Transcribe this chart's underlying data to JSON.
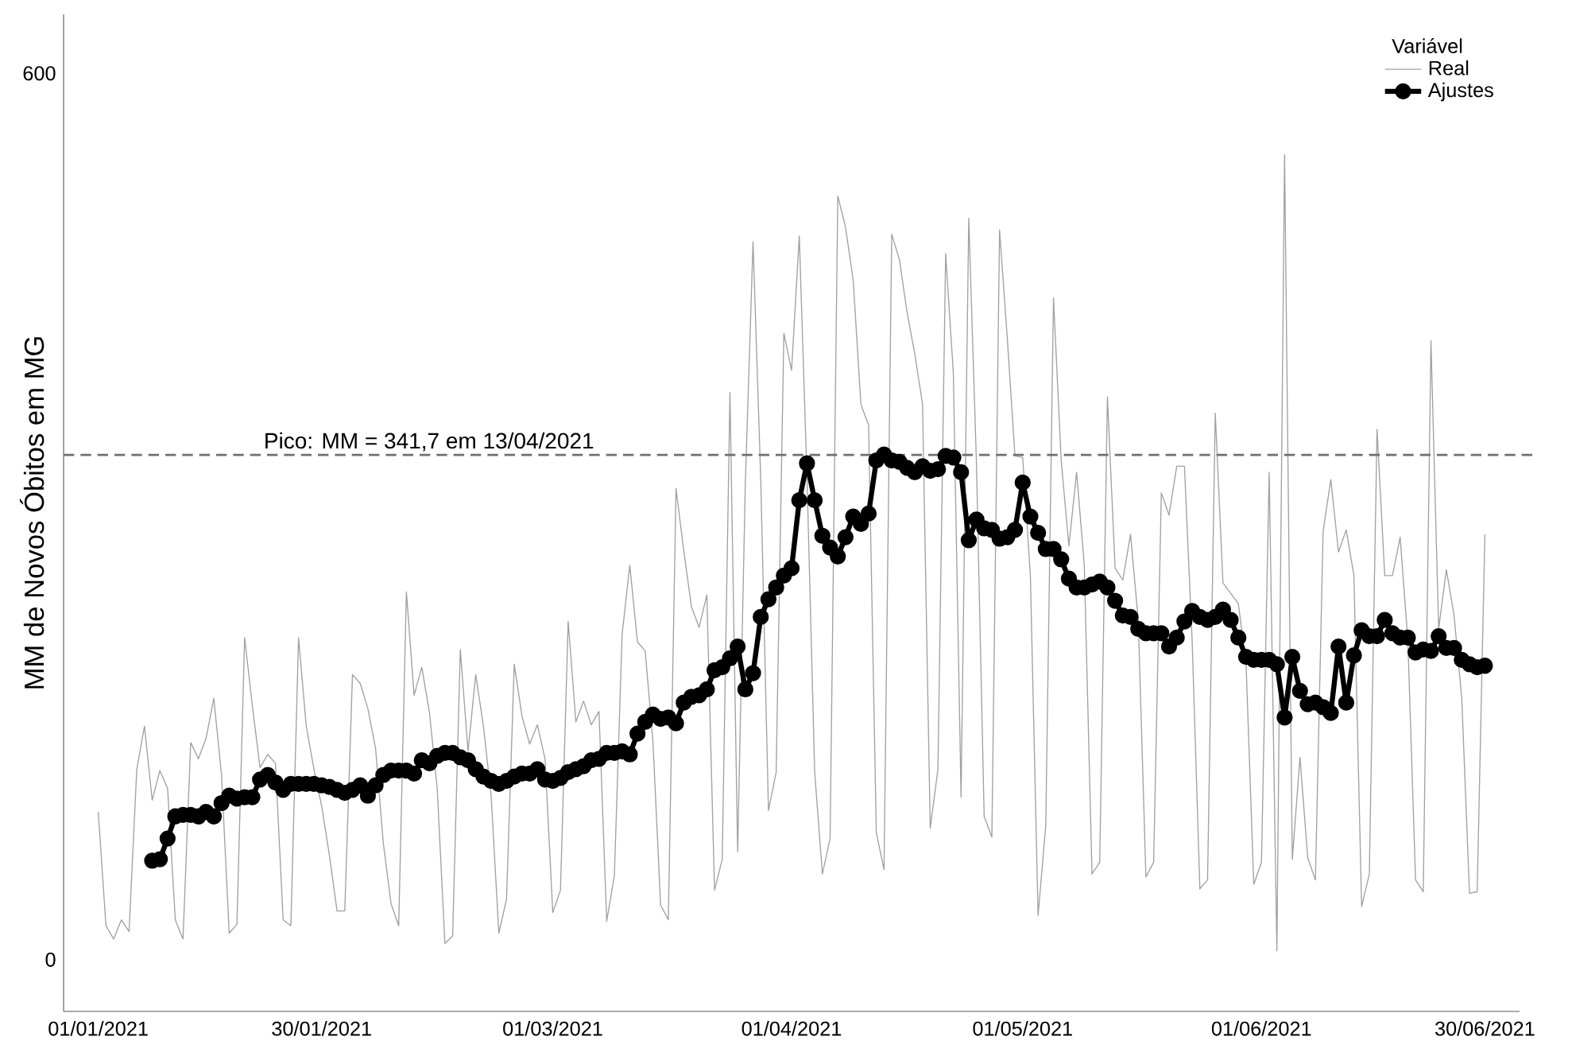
{
  "chart_data": {
    "type": "line",
    "ylabel": "MM de Novos Óbitos em MG",
    "legend_title": "Variável",
    "legend": "top right",
    "grid": false,
    "x": [
      "2021-01-01",
      "2021-01-02",
      "2021-01-03",
      "2021-01-04",
      "2021-01-05",
      "2021-01-06",
      "2021-01-07",
      "2021-01-08",
      "2021-01-09",
      "2021-01-10",
      "2021-01-11",
      "2021-01-12",
      "2021-01-13",
      "2021-01-14",
      "2021-01-15",
      "2021-01-16",
      "2021-01-17",
      "2021-01-18",
      "2021-01-19",
      "2021-01-20",
      "2021-01-21",
      "2021-01-22",
      "2021-01-23",
      "2021-01-24",
      "2021-01-25",
      "2021-01-26",
      "2021-01-27",
      "2021-01-28",
      "2021-01-29",
      "2021-01-30",
      "2021-01-31",
      "2021-02-01",
      "2021-02-02",
      "2021-02-03",
      "2021-02-04",
      "2021-02-05",
      "2021-02-06",
      "2021-02-07",
      "2021-02-08",
      "2021-02-09",
      "2021-02-10",
      "2021-02-11",
      "2021-02-12",
      "2021-02-13",
      "2021-02-14",
      "2021-02-15",
      "2021-02-16",
      "2021-02-17",
      "2021-02-18",
      "2021-02-19",
      "2021-02-20",
      "2021-02-21",
      "2021-02-22",
      "2021-02-23",
      "2021-02-24",
      "2021-02-25",
      "2021-02-26",
      "2021-02-27",
      "2021-02-28",
      "2021-03-01",
      "2021-03-02",
      "2021-03-03",
      "2021-03-04",
      "2021-03-05",
      "2021-03-06",
      "2021-03-07",
      "2021-03-08",
      "2021-03-09",
      "2021-03-10",
      "2021-03-11",
      "2021-03-12",
      "2021-03-13",
      "2021-03-14",
      "2021-03-15",
      "2021-03-16",
      "2021-03-17",
      "2021-03-18",
      "2021-03-19",
      "2021-03-20",
      "2021-03-21",
      "2021-03-22",
      "2021-03-23",
      "2021-03-24",
      "2021-03-25",
      "2021-03-26",
      "2021-03-27",
      "2021-03-28",
      "2021-03-29",
      "2021-03-30",
      "2021-03-31",
      "2021-04-01",
      "2021-04-02",
      "2021-04-03",
      "2021-04-04",
      "2021-04-05",
      "2021-04-06",
      "2021-04-07",
      "2021-04-08",
      "2021-04-09",
      "2021-04-10",
      "2021-04-11",
      "2021-04-12",
      "2021-04-13",
      "2021-04-14",
      "2021-04-15",
      "2021-04-16",
      "2021-04-17",
      "2021-04-18",
      "2021-04-19",
      "2021-04-20",
      "2021-04-21",
      "2021-04-22",
      "2021-04-23",
      "2021-04-24",
      "2021-04-25",
      "2021-04-26",
      "2021-04-27",
      "2021-04-28",
      "2021-04-29",
      "2021-04-30",
      "2021-05-01",
      "2021-05-02",
      "2021-05-03",
      "2021-05-04",
      "2021-05-05",
      "2021-05-06",
      "2021-05-07",
      "2021-05-08",
      "2021-05-09",
      "2021-05-10",
      "2021-05-11",
      "2021-05-12",
      "2021-05-13",
      "2021-05-14",
      "2021-05-15",
      "2021-05-16",
      "2021-05-17",
      "2021-05-18",
      "2021-05-19",
      "2021-05-20",
      "2021-05-21",
      "2021-05-22",
      "2021-05-23",
      "2021-05-24",
      "2021-05-25",
      "2021-05-26",
      "2021-05-27",
      "2021-05-28",
      "2021-05-29",
      "2021-05-30",
      "2021-05-31",
      "2021-06-01",
      "2021-06-02",
      "2021-06-03",
      "2021-06-04",
      "2021-06-05",
      "2021-06-06",
      "2021-06-07",
      "2021-06-08",
      "2021-06-09",
      "2021-06-10",
      "2021-06-11",
      "2021-06-12",
      "2021-06-13",
      "2021-06-14",
      "2021-06-15",
      "2021-06-16",
      "2021-06-17",
      "2021-06-18",
      "2021-06-19",
      "2021-06-20",
      "2021-06-21",
      "2021-06-22",
      "2021-06-23",
      "2021-06-24",
      "2021-06-25",
      "2021-06-26",
      "2021-06-27",
      "2021-06-28",
      "2021-06-29",
      "2021-06-30"
    ],
    "xlim": [
      "2020-12-27T12:00",
      "2021-07-04T12:00"
    ],
    "xticks": [
      {
        "value": "2021-01-01",
        "label": "01/01/2021"
      },
      {
        "value": "2021-01-30",
        "label": "30/01/2021"
      },
      {
        "value": "2021-03-01",
        "label": "01/03/2021"
      },
      {
        "value": "2021-04-01",
        "label": "01/04/2021"
      },
      {
        "value": "2021-05-01",
        "label": "01/05/2021"
      },
      {
        "value": "2021-06-01",
        "label": "01/06/2021"
      },
      {
        "value": "2021-06-30",
        "label": "30/06/2021"
      }
    ],
    "ylim": [
      -35,
      640
    ],
    "yticks": [
      0,
      600
    ],
    "ref_lines": [
      {
        "axis": "y",
        "value": 341.7,
        "label": "Pico: MM = 341,7 em 13/04/2021",
        "color": "#707070",
        "line_style": "dashed"
      }
    ],
    "series": [
      {
        "name": "Real",
        "color": "#a0a0a0",
        "marker": "none",
        "values": [
          100,
          23,
          14,
          27,
          19,
          129,
          158,
          108,
          128,
          116,
          27,
          14,
          147,
          136,
          150,
          177,
          125,
          18,
          24,
          218,
          172,
          130,
          139,
          133,
          27,
          23,
          218,
          158,
          129,
          104,
          71,
          33,
          33,
          193,
          187,
          170,
          143,
          79,
          38,
          23,
          249,
          179,
          198,
          167,
          116,
          11,
          16,
          210,
          141,
          193,
          158,
          111,
          18,
          41,
          200,
          165,
          146,
          159,
          136,
          32,
          47,
          229,
          161,
          175,
          159,
          168,
          26,
          57,
          220,
          267,
          215,
          209,
          148,
          37,
          27,
          319,
          277,
          239,
          225,
          247,
          47,
          68,
          384,
          73,
          323,
          486,
          325,
          101,
          127,
          424,
          399,
          490,
          327,
          127,
          58,
          82,
          517,
          496,
          460,
          376,
          362,
          86,
          61,
          491,
          474,
          438,
          410,
          376,
          89,
          129,
          478,
          397,
          110,
          502,
          336,
          97,
          83,
          494,
          421,
          341,
          340,
          260,
          30,
          91,
          448,
          338,
          280,
          330,
          267,
          58,
          66,
          381,
          265,
          257,
          288,
          230,
          56,
          66,
          316,
          301,
          334,
          334,
          216,
          48,
          54,
          370,
          255,
          248,
          241,
          200,
          51,
          66,
          330,
          6,
          545,
          68,
          137,
          69,
          54,
          290,
          325,
          276,
          291,
          260,
          36,
          58,
          359,
          260,
          260,
          286,
          216,
          54,
          46,
          419,
          224,
          264,
          233,
          177,
          45,
          46,
          288
        ]
      },
      {
        "name": "Ajustes",
        "color": "#000000",
        "marker": "circle",
        "values": [
          null,
          null,
          null,
          null,
          null,
          null,
          null,
          67,
          68,
          82,
          97,
          98,
          98,
          97,
          100,
          97,
          106,
          111,
          109,
          110,
          110,
          122,
          125,
          120,
          115,
          119,
          119,
          119,
          119,
          118,
          117,
          115,
          113,
          115,
          118,
          111,
          118,
          125,
          128,
          128,
          128,
          126,
          135,
          133,
          138,
          140,
          140,
          137,
          135,
          129,
          124,
          121,
          119,
          121,
          124,
          126,
          126,
          129,
          122,
          121,
          123,
          127,
          129,
          131,
          135,
          136,
          140,
          140,
          141,
          139,
          153,
          161,
          166,
          163,
          164,
          160,
          174,
          178,
          179,
          183,
          196,
          198,
          204,
          212,
          183,
          194,
          232,
          244,
          252,
          260,
          265,
          311,
          336,
          311,
          287,
          279,
          273,
          286,
          300,
          295,
          302,
          338,
          342,
          338,
          337,
          333,
          330,
          334,
          331,
          332,
          341,
          340,
          330,
          284,
          298,
          292,
          291,
          285,
          286,
          291,
          323,
          300,
          289,
          278,
          278,
          271,
          258,
          252,
          252,
          254,
          256,
          252,
          243,
          233,
          232,
          224,
          221,
          221,
          221,
          212,
          218,
          229,
          236,
          232,
          230,
          232,
          237,
          230,
          218,
          205,
          203,
          203,
          203,
          200,
          164,
          205,
          182,
          173,
          174,
          171,
          167,
          212,
          174,
          206,
          223,
          219,
          219,
          230,
          221,
          218,
          218,
          208,
          210,
          209,
          219,
          211,
          211,
          203,
          200,
          198,
          199
        ]
      }
    ]
  }
}
